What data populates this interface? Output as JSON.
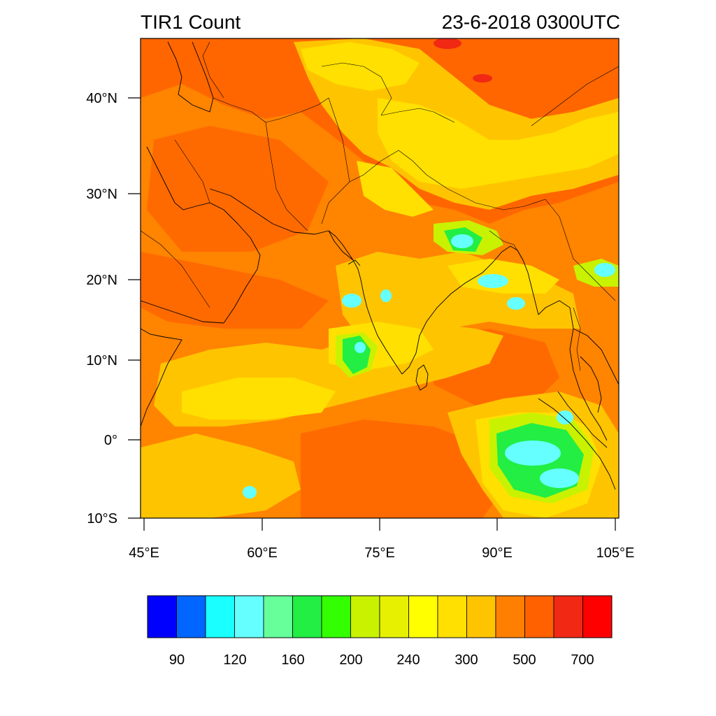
{
  "title": {
    "left": "TIR1 Count",
    "right": "23-6-2018 0300UTC"
  },
  "axes": {
    "lat_labels": [
      "40°N",
      "30°N",
      "20°N",
      "10°N",
      "0°",
      "10°S"
    ],
    "lon_labels": [
      "45°E",
      "60°E",
      "75°E",
      "90°E",
      "105°E"
    ]
  },
  "colorbar": {
    "colors": [
      "#0000ff",
      "#0066ff",
      "#1affff",
      "#66ffff",
      "#66ff99",
      "#22ee44",
      "#33ff00",
      "#c8f200",
      "#e6f000",
      "#ffff00",
      "#ffe000",
      "#ffc400",
      "#ff8000",
      "#ff6000",
      "#f02814",
      "#ff0000"
    ],
    "labels": [
      "90",
      "120",
      "160",
      "200",
      "240",
      "300",
      "500",
      "700"
    ]
  },
  "palette": {
    "background_orange": "#ff6600",
    "orange_light": "#ff8400",
    "yellow_orange": "#ffc400",
    "yellow": "#ffe000",
    "bright_yellow": "#ffff00",
    "lime": "#c8f200",
    "green": "#22ee44",
    "cyan": "#66ffff",
    "red": "#f02814",
    "coast": "#000000"
  }
}
